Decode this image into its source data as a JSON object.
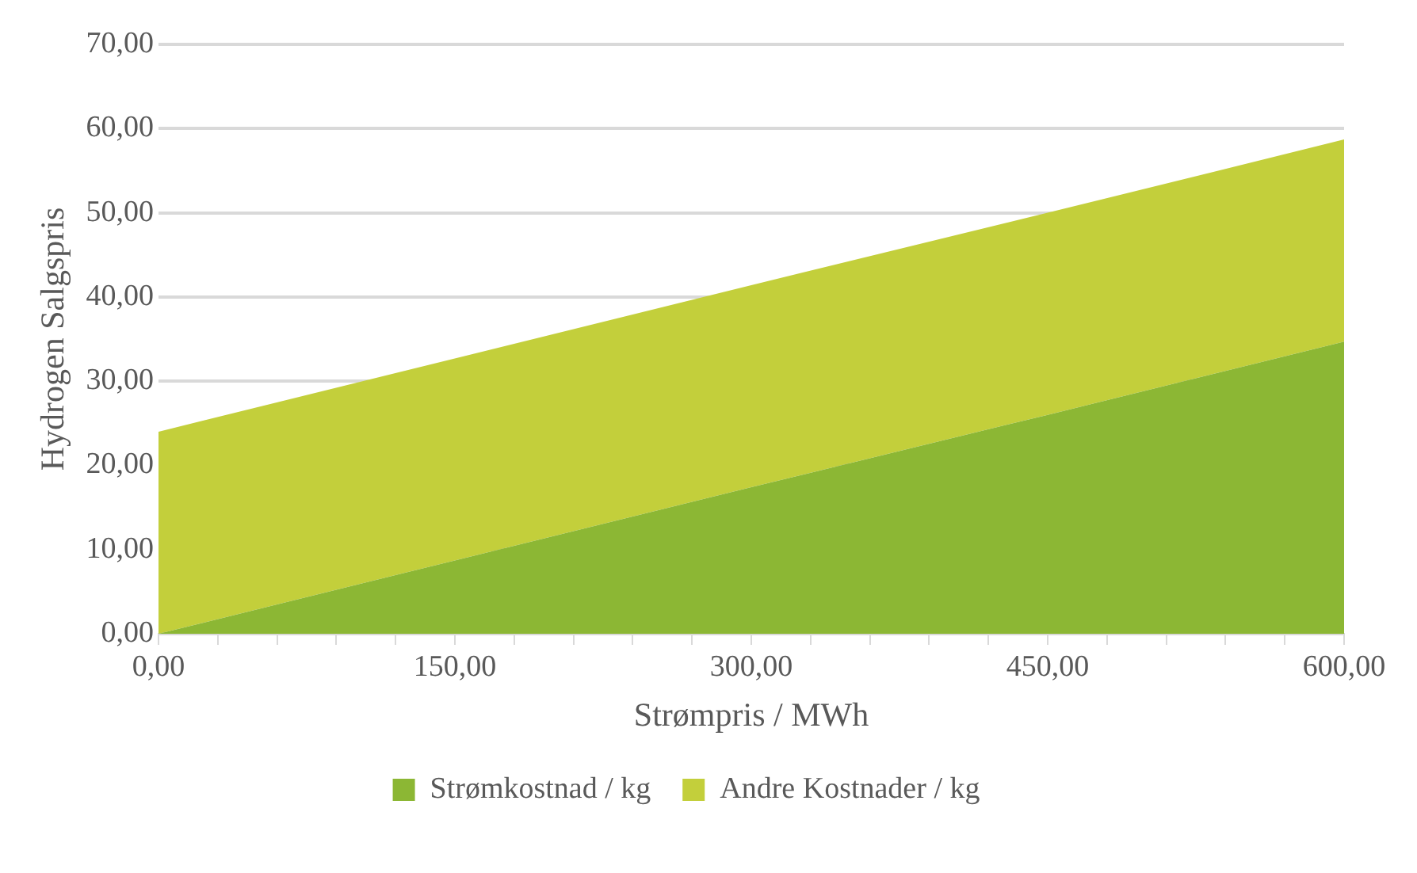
{
  "chart_data": {
    "type": "area",
    "xlabel": "Strømpris / MWh",
    "ylabel": "Hydrogen Salgspris",
    "stacked": true,
    "x": [
      0,
      150,
      300,
      450,
      600
    ],
    "series": [
      {
        "name": "Strømkostnad / kg",
        "color": "#8cb734",
        "values": [
          0,
          8.7,
          17.4,
          26,
          34.7
        ]
      },
      {
        "name": "Andre Kostnader / kg",
        "color": "#c3cf3b",
        "values": [
          24,
          24,
          24,
          24,
          24
        ]
      }
    ],
    "xlim": [
      0,
      600
    ],
    "ylim": [
      0,
      70
    ],
    "xticks": [
      {
        "value": 0,
        "label": "0,00"
      },
      {
        "value": 30,
        "label": null
      },
      {
        "value": 60,
        "label": null
      },
      {
        "value": 90,
        "label": null
      },
      {
        "value": 120,
        "label": null
      },
      {
        "value": 150,
        "label": "150,00"
      },
      {
        "value": 180,
        "label": null
      },
      {
        "value": 210,
        "label": null
      },
      {
        "value": 240,
        "label": null
      },
      {
        "value": 270,
        "label": null
      },
      {
        "value": 300,
        "label": "300,00"
      },
      {
        "value": 330,
        "label": null
      },
      {
        "value": 360,
        "label": null
      },
      {
        "value": 390,
        "label": null
      },
      {
        "value": 420,
        "label": null
      },
      {
        "value": 450,
        "label": "450,00"
      },
      {
        "value": 480,
        "label": null
      },
      {
        "value": 510,
        "label": null
      },
      {
        "value": 540,
        "label": null
      },
      {
        "value": 570,
        "label": null
      },
      {
        "value": 600,
        "label": "600,00"
      }
    ],
    "yticks": [
      {
        "value": 0,
        "label": "0,00"
      },
      {
        "value": 10,
        "label": "10,00"
      },
      {
        "value": 20,
        "label": "20,00"
      },
      {
        "value": 30,
        "label": "30,00"
      },
      {
        "value": 40,
        "label": "40,00"
      },
      {
        "value": 50,
        "label": "50,00"
      },
      {
        "value": 60,
        "label": "60,00"
      },
      {
        "value": 70,
        "label": "70,00"
      }
    ],
    "grid": "y",
    "legend": "bottom"
  }
}
